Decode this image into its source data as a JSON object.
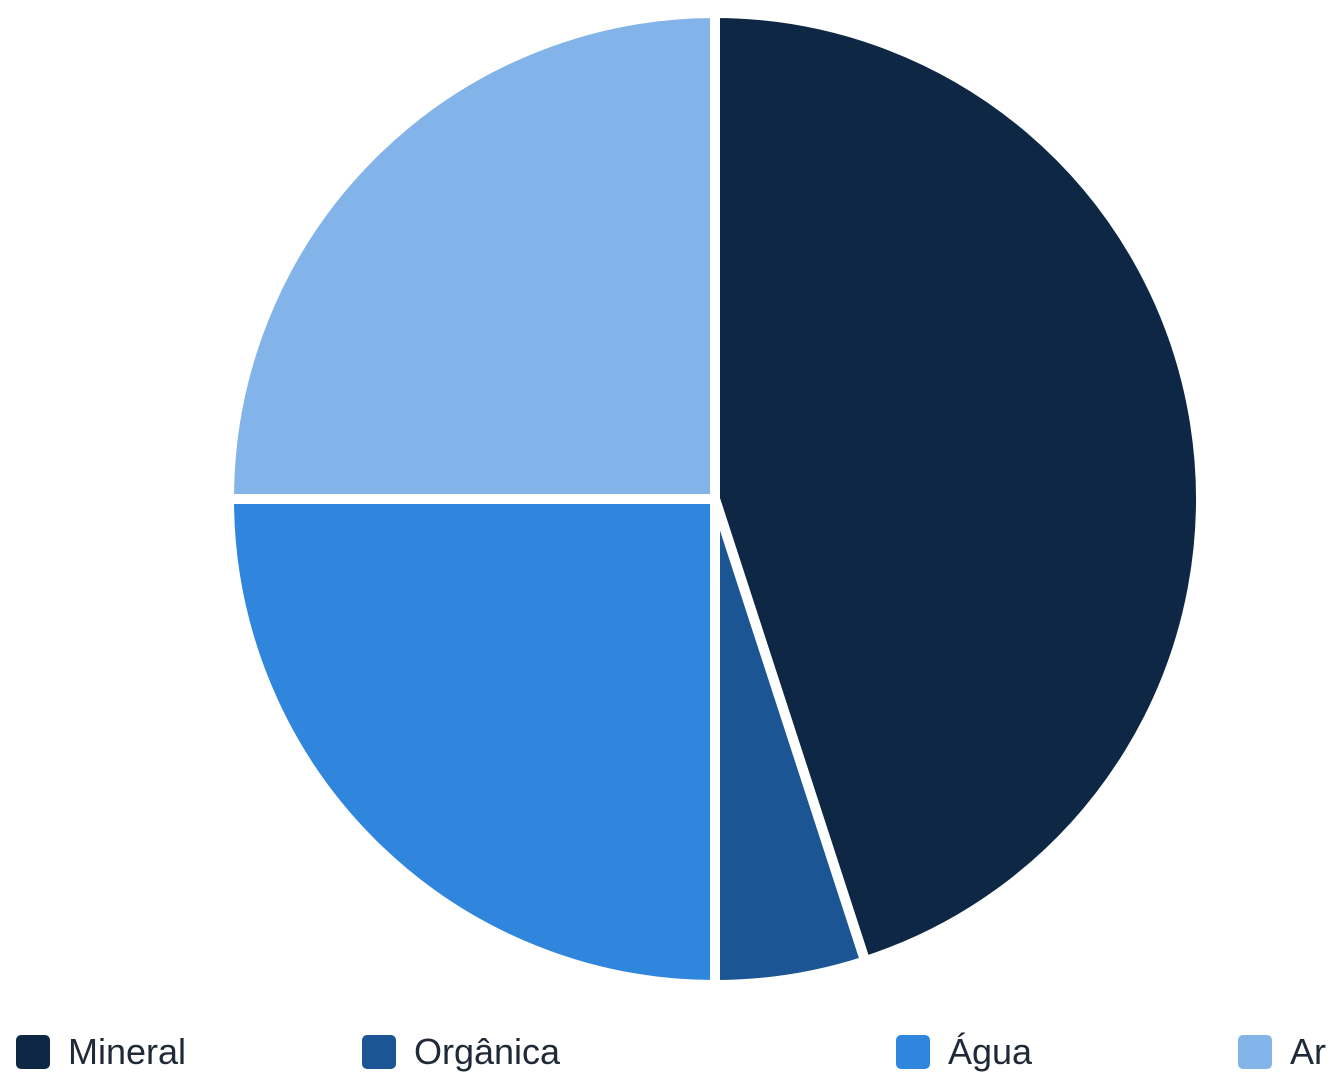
{
  "chart_data": {
    "type": "pie",
    "title": "",
    "categories": [
      "Mineral",
      "Orgânica",
      "Água",
      "Ar"
    ],
    "values": [
      45,
      5,
      25,
      25
    ],
    "colors": [
      "#0d2744",
      "#1b5594",
      "#2f86dc",
      "#82b4ea"
    ],
    "start_angle_deg": 0,
    "direction": "clockwise",
    "legend_position": "bottom"
  },
  "legend": {
    "items": [
      {
        "label": "Mineral",
        "color": "#0d2744"
      },
      {
        "label": "Orgânica",
        "color": "#1b5594"
      },
      {
        "label": "Água",
        "color": "#2f86dc"
      },
      {
        "label": "Ar",
        "color": "#82b4ea"
      }
    ]
  }
}
